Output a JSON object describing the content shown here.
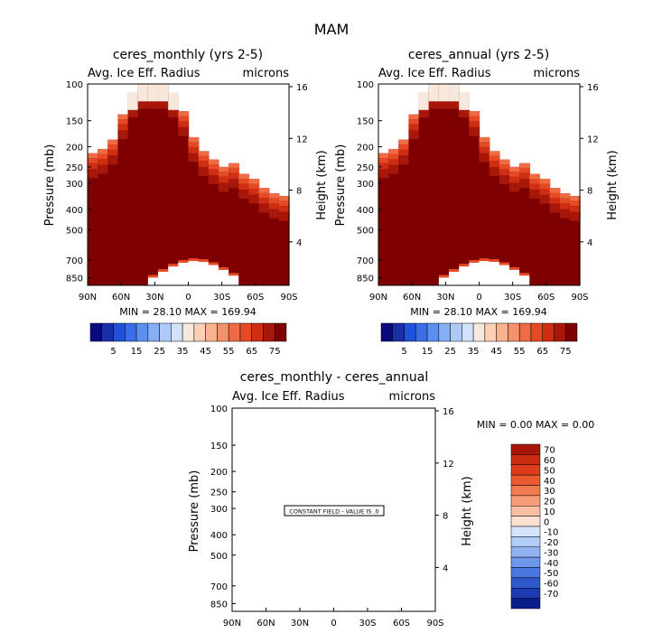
{
  "figure_title": "MAM",
  "chart_data": [
    {
      "type": "contour",
      "title": "ceres_monthly (yrs 2-5)",
      "subtitle_left": "Avg. Ice Eff. Radius",
      "subtitle_right": "microns",
      "ylabel": "Pressure (mb)",
      "ylabel_right": "Height (km)",
      "x_ticks": [
        "90N",
        "60N",
        "30N",
        "0",
        "30S",
        "60S",
        "90S"
      ],
      "x_values": [
        90,
        60,
        30,
        0,
        -30,
        -60,
        -90
      ],
      "y_ticks": [
        100,
        150,
        200,
        250,
        300,
        400,
        500,
        700,
        850
      ],
      "height_ticks": [
        16,
        12,
        8,
        4
      ],
      "stats": "MIN =   28.10   MAX =  169.94",
      "min": 28.1,
      "max": 169.94,
      "colorbar_labels": [
        "5",
        "15",
        "25",
        "35",
        "45",
        "55",
        "65",
        "75"
      ],
      "colorbar_colors": [
        "#0a0a80",
        "#1a2fa8",
        "#2052d9",
        "#3a6ee8",
        "#5b8ff0",
        "#85aef5",
        "#adc9f7",
        "#d2e2fa",
        "#f6e8dc",
        "#fbd0b5",
        "#f9b28e",
        "#f5906a",
        "#ef6b44",
        "#e54a25",
        "#cf2e12",
        "#a8180a",
        "#7f0000"
      ],
      "cloud_top_pressure": [
        215,
        205,
        185,
        140,
        110,
        100,
        100,
        100,
        110,
        135,
        180,
        210,
        230,
        250,
        240,
        270,
        285,
        315,
        335,
        345
      ]
    },
    {
      "type": "contour",
      "title": "ceres_annual (yrs 2-5)",
      "subtitle_left": "Avg. Ice Eff. Radius",
      "subtitle_right": "microns",
      "ylabel": "Pressure (mb)",
      "ylabel_right": "Height (km)",
      "x_ticks": [
        "90N",
        "60N",
        "30N",
        "0",
        "30S",
        "60S",
        "90S"
      ],
      "x_values": [
        90,
        60,
        30,
        0,
        -30,
        -60,
        -90
      ],
      "y_ticks": [
        100,
        150,
        200,
        250,
        300,
        400,
        500,
        700,
        850
      ],
      "height_ticks": [
        16,
        12,
        8,
        4
      ],
      "stats": "MIN =   28.10   MAX =  169.94",
      "min": 28.1,
      "max": 169.94,
      "colorbar_labels": [
        "5",
        "15",
        "25",
        "35",
        "45",
        "55",
        "65",
        "75"
      ],
      "colorbar_colors": [
        "#0a0a80",
        "#1a2fa8",
        "#2052d9",
        "#3a6ee8",
        "#5b8ff0",
        "#85aef5",
        "#adc9f7",
        "#d2e2fa",
        "#f6e8dc",
        "#fbd0b5",
        "#f9b28e",
        "#f5906a",
        "#ef6b44",
        "#e54a25",
        "#cf2e12",
        "#a8180a",
        "#7f0000"
      ],
      "cloud_top_pressure": [
        215,
        205,
        185,
        140,
        110,
        100,
        100,
        100,
        110,
        135,
        180,
        210,
        230,
        250,
        240,
        270,
        285,
        315,
        335,
        345
      ]
    },
    {
      "type": "contour",
      "title": "ceres_monthly - ceres_annual",
      "subtitle_left": "Avg. Ice Eff. Radius",
      "subtitle_right": "microns",
      "ylabel": "Pressure (mb)",
      "ylabel_right": "Height (km)",
      "x_ticks": [
        "90N",
        "60N",
        "30N",
        "0",
        "30S",
        "60S",
        "90S"
      ],
      "x_values": [
        90,
        60,
        30,
        0,
        -30,
        -60,
        -90
      ],
      "y_ticks": [
        100,
        150,
        200,
        250,
        300,
        400,
        500,
        700,
        850
      ],
      "height_ticks": [
        16,
        12,
        8,
        4
      ],
      "stats": "MIN =    0.00   MAX =    0.00",
      "min": 0.0,
      "max": 0.0,
      "annotation": "CONSTANT FIELD - VALUE IS .0",
      "colorbar_labels": [
        "70",
        "60",
        "50",
        "40",
        "30",
        "20",
        "10",
        "0",
        "-10",
        "-20",
        "-30",
        "-40",
        "-50",
        "-60",
        "-70"
      ],
      "colorbar_colors": [
        "#a8180a",
        "#c92a10",
        "#dd3d1c",
        "#ea5a30",
        "#f27a50",
        "#f69c78",
        "#f9bfa2",
        "#fbe2d2",
        "#d5e4fa",
        "#b2cdf6",
        "#8fb3f1",
        "#6d97ea",
        "#4a78e0",
        "#2f58cc",
        "#1c3bb0",
        "#0a1c8a"
      ]
    }
  ]
}
